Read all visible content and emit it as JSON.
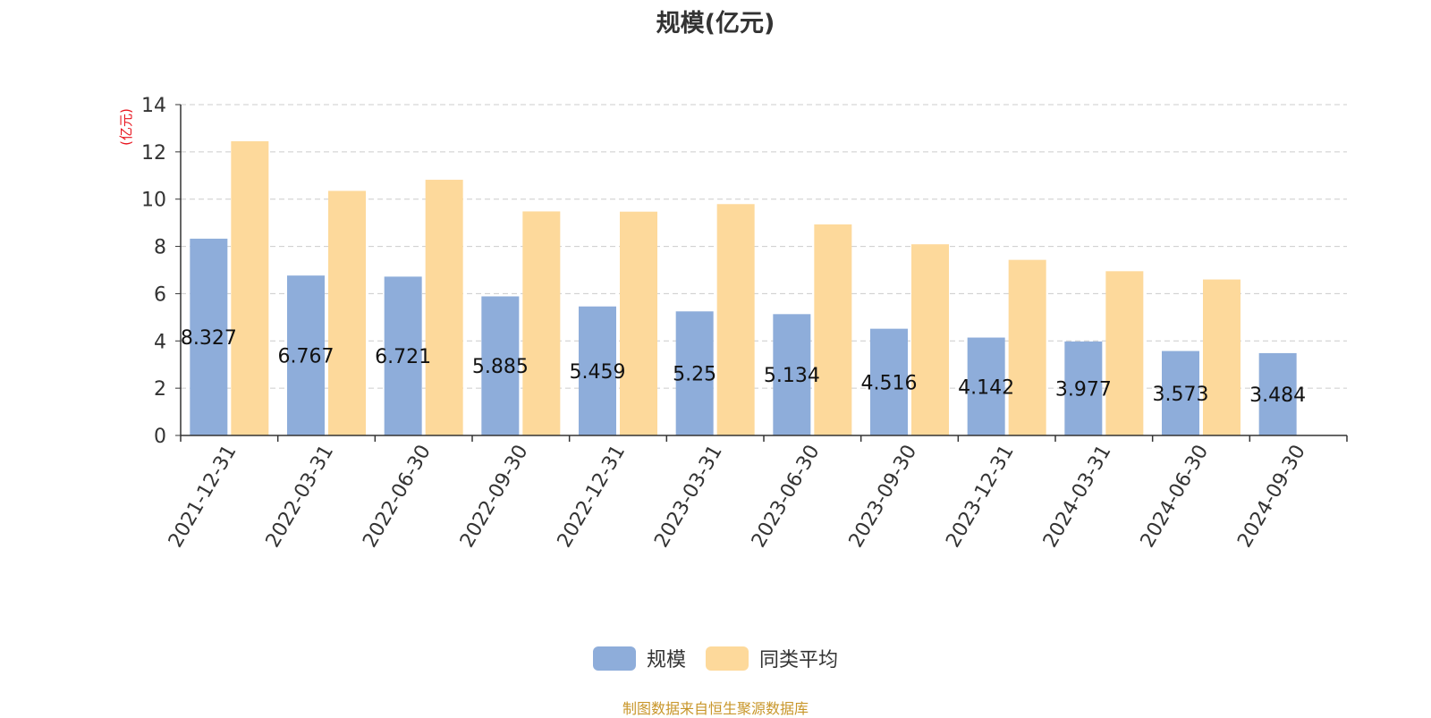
{
  "chart_data": {
    "type": "bar",
    "title": "规模(亿元)",
    "ylabel": "(亿元)",
    "categories": [
      "2021-12-31",
      "2022-03-31",
      "2022-06-30",
      "2022-09-30",
      "2022-12-31",
      "2023-03-31",
      "2023-06-30",
      "2023-09-30",
      "2023-12-31",
      "2024-03-31",
      "2024-06-30",
      "2024-09-30"
    ],
    "series": [
      {
        "name": "规模",
        "color": "#8eadda",
        "values": [
          8.327,
          6.767,
          6.721,
          5.885,
          5.459,
          5.25,
          5.134,
          4.516,
          4.142,
          3.977,
          3.573,
          3.484
        ],
        "show_labels": true
      },
      {
        "name": "同类平均",
        "color": "#fdd99b",
        "values": [
          12.45,
          10.35,
          10.82,
          9.48,
          9.47,
          9.79,
          8.93,
          8.09,
          7.43,
          6.95,
          6.6,
          null
        ],
        "show_labels": false
      }
    ],
    "ylim": [
      0,
      14
    ],
    "yticks": [
      0,
      2,
      4,
      6,
      8,
      10,
      12,
      14
    ],
    "grid": true,
    "legend_position": "bottom-center"
  },
  "source_note": "制图数据来自恒生聚源数据库"
}
